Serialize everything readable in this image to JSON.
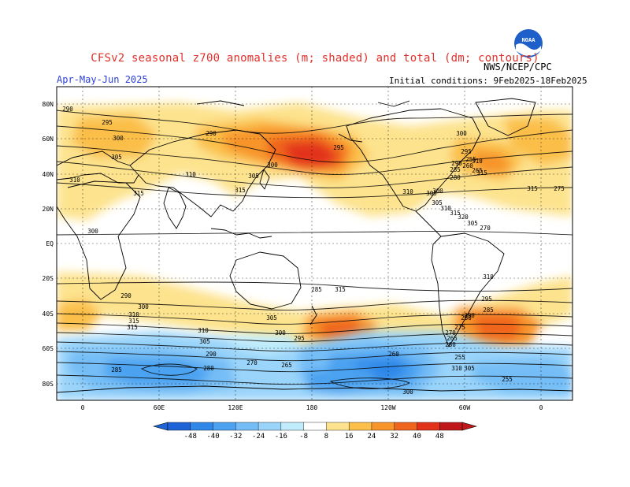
{
  "header": {
    "title": "CFSv2 seasonal z700 anomalies (m; shaded) and total (dm; contours)",
    "period": "Apr-May-Jun 2025",
    "source": "NWS/NCEP/CPC",
    "initial_conditions": "Initial conditions: 9Feb2025-18Feb2025",
    "logo_text": "NOAA"
  },
  "colors": {
    "title": "#e0302a",
    "period": "#2b3fd6",
    "ocean": "#ffffff",
    "land_outline": "#000000"
  },
  "map": {
    "projection": "cylindrical equidistant, Greenwich-centered at 0 and wrapping",
    "lat_labels": [
      "80N",
      "60N",
      "40N",
      "20N",
      "EQ",
      "20S",
      "40S",
      "60S",
      "80S"
    ],
    "lon_labels": [
      "0",
      "60E",
      "120E",
      "180",
      "120W",
      "60W",
      "0"
    ],
    "contour_labels": [
      "290",
      "295",
      "300",
      "305",
      "310",
      "315",
      "290",
      "300",
      "305",
      "310",
      "315",
      "295",
      "300",
      "310",
      "315",
      "290",
      "285",
      "300",
      "305",
      "310",
      "315",
      "315",
      "310",
      "305",
      "300",
      "295",
      "290",
      "285",
      "280",
      "270",
      "265",
      "260",
      "255",
      "310",
      "305",
      "300",
      "295",
      "290",
      "285",
      "280",
      "275",
      "270",
      "265",
      "260",
      "255",
      "315",
      "310",
      "305",
      "300",
      "295",
      "290",
      "285",
      "280",
      "275",
      "270",
      "265",
      "260",
      "255",
      "310",
      "315",
      "300",
      "305",
      "310",
      "315",
      "320",
      "305"
    ]
  },
  "legend": {
    "ticks": [
      "-48",
      "-40",
      "-32",
      "-24",
      "-16",
      "-8",
      "8",
      "16",
      "24",
      "32",
      "40",
      "48"
    ],
    "colors": [
      "#1e64d7",
      "#2f87e8",
      "#4ca2f0",
      "#74bdf6",
      "#9ad4fa",
      "#c0ecfb",
      "#ffffff",
      "#fde38e",
      "#fbbf4a",
      "#f7942a",
      "#f0651e",
      "#e2331a",
      "#c0181a"
    ]
  }
}
